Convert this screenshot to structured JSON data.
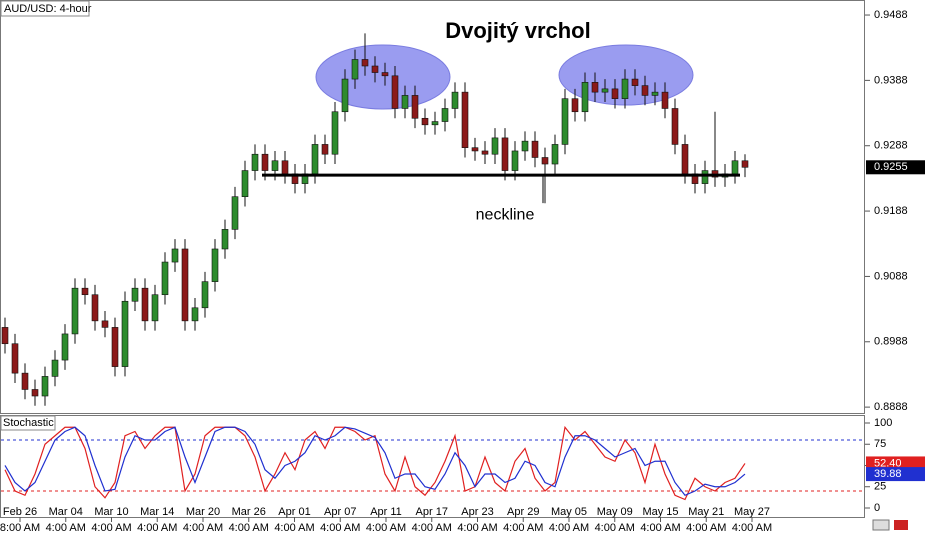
{
  "chart_data": [
    {
      "type": "candlestick",
      "title": "Dvojitý vrchol",
      "subtitle": "AUD/USD: 4-hour",
      "open": [
        0.901,
        0.8985,
        0.894,
        0.8915,
        0.8905,
        0.8935,
        0.896,
        0.9,
        0.907,
        0.906,
        0.902,
        0.901,
        0.895,
        0.905,
        0.907,
        0.902,
        0.906,
        0.911,
        0.913,
        0.902,
        0.904,
        0.908,
        0.913,
        0.916,
        0.921,
        0.925,
        0.9275,
        0.925,
        0.9265,
        0.9245,
        0.923,
        0.9245,
        0.929,
        0.9275,
        0.934,
        0.939,
        0.942,
        0.941,
        0.94,
        0.9395,
        0.9345,
        0.9365,
        0.933,
        0.932,
        0.9325,
        0.9345,
        0.937,
        0.9285,
        0.928,
        0.9275,
        0.93,
        0.925,
        0.928,
        0.9295,
        0.927,
        0.926,
        0.929,
        0.936,
        0.934,
        0.9385,
        0.937,
        0.9375,
        0.936,
        0.939,
        0.938,
        0.9365,
        0.937,
        0.9345,
        0.929,
        0.9245,
        0.923,
        0.925,
        0.924,
        0.9245,
        0.9265
      ],
      "high": [
        0.9025,
        0.9,
        0.8955,
        0.893,
        0.895,
        0.8975,
        0.9015,
        0.9085,
        0.9085,
        0.9075,
        0.9035,
        0.9025,
        0.9065,
        0.9085,
        0.9085,
        0.9075,
        0.9125,
        0.9145,
        0.9145,
        0.9055,
        0.9095,
        0.9145,
        0.9175,
        0.9225,
        0.9265,
        0.929,
        0.929,
        0.928,
        0.928,
        0.926,
        0.926,
        0.9305,
        0.9305,
        0.9355,
        0.9405,
        0.9435,
        0.946,
        0.9425,
        0.9415,
        0.941,
        0.938,
        0.938,
        0.9345,
        0.934,
        0.936,
        0.9385,
        0.9385,
        0.93,
        0.9295,
        0.9315,
        0.9315,
        0.9295,
        0.931,
        0.931,
        0.9285,
        0.9305,
        0.9375,
        0.9375,
        0.94,
        0.94,
        0.939,
        0.939,
        0.9405,
        0.9405,
        0.9395,
        0.9385,
        0.9385,
        0.936,
        0.9305,
        0.926,
        0.9265,
        0.934,
        0.926,
        0.928,
        0.9275
      ],
      "low": [
        0.897,
        0.8925,
        0.89,
        0.889,
        0.889,
        0.892,
        0.8945,
        0.8985,
        0.9045,
        0.9005,
        0.8995,
        0.8935,
        0.8935,
        0.9035,
        0.9005,
        0.9005,
        0.9045,
        0.9095,
        0.9005,
        0.9005,
        0.9025,
        0.9065,
        0.9115,
        0.9145,
        0.9195,
        0.9235,
        0.9235,
        0.9235,
        0.923,
        0.9215,
        0.9215,
        0.923,
        0.926,
        0.926,
        0.9325,
        0.9375,
        0.9395,
        0.9385,
        0.938,
        0.933,
        0.933,
        0.9315,
        0.9305,
        0.9305,
        0.931,
        0.933,
        0.927,
        0.9265,
        0.926,
        0.926,
        0.9235,
        0.9235,
        0.9265,
        0.9255,
        0.92,
        0.9245,
        0.9275,
        0.9325,
        0.9325,
        0.9355,
        0.9355,
        0.9345,
        0.9345,
        0.9365,
        0.935,
        0.935,
        0.933,
        0.9275,
        0.923,
        0.9215,
        0.9215,
        0.9225,
        0.9225,
        0.923,
        0.924
      ],
      "close": [
        0.8985,
        0.894,
        0.8915,
        0.8905,
        0.8935,
        0.896,
        0.9,
        0.907,
        0.906,
        0.902,
        0.901,
        0.895,
        0.905,
        0.907,
        0.902,
        0.906,
        0.911,
        0.913,
        0.902,
        0.904,
        0.908,
        0.913,
        0.916,
        0.921,
        0.925,
        0.9275,
        0.925,
        0.9265,
        0.9245,
        0.923,
        0.9245,
        0.929,
        0.9275,
        0.934,
        0.939,
        0.942,
        0.941,
        0.94,
        0.9395,
        0.9345,
        0.9365,
        0.933,
        0.932,
        0.9325,
        0.9345,
        0.937,
        0.9285,
        0.928,
        0.9275,
        0.93,
        0.925,
        0.928,
        0.9295,
        0.927,
        0.926,
        0.929,
        0.936,
        0.934,
        0.9385,
        0.937,
        0.9375,
        0.936,
        0.939,
        0.938,
        0.9365,
        0.937,
        0.9345,
        0.929,
        0.9245,
        0.923,
        0.925,
        0.924,
        0.9245,
        0.9265,
        0.9255
      ],
      "up_color": "#2e8b2e",
      "down_color": "#8b1a1a",
      "ylim": [
        0.8879,
        0.9511
      ],
      "yticks": [
        0.8888,
        0.8988,
        0.9088,
        0.9188,
        0.9288,
        0.9388,
        0.9488
      ],
      "neckline": {
        "label": "neckline",
        "value": 0.9243
      },
      "xtick_dates": [
        "Feb 26",
        "Mar 04",
        "Mar 10",
        "Mar 14",
        "Mar 20",
        "Mar 26",
        "Apr 01",
        "Apr 07",
        "Apr 11",
        "Apr 17",
        "Apr 23",
        "Apr 29",
        "May 05",
        "May 09",
        "May 15",
        "May 21",
        "May 27"
      ],
      "xtick_times": [
        "8:00 AM",
        "4:00 AM",
        "4:00 AM",
        "4:00 AM",
        "4:00 AM",
        "4:00 AM",
        "4:00 AM",
        "4:00 AM",
        "4:00 AM",
        "4:00 AM",
        "4:00 AM",
        "4:00 AM",
        "4:00 AM",
        "4:00 AM",
        "4:00 AM",
        "4:00 AM",
        "4:00 AM"
      ],
      "grid": false
    },
    {
      "type": "line",
      "title": "Stochastic",
      "series": [
        {
          "color": "#e02020",
          "values": [
            45,
            20,
            15,
            40,
            75,
            85,
            95,
            95,
            70,
            25,
            12,
            30,
            85,
            90,
            70,
            85,
            95,
            95,
            20,
            40,
            85,
            95,
            95,
            95,
            85,
            60,
            20,
            40,
            65,
            45,
            80,
            90,
            70,
            95,
            95,
            90,
            80,
            85,
            40,
            20,
            60,
            25,
            15,
            30,
            55,
            85,
            20,
            25,
            60,
            30,
            20,
            55,
            70,
            35,
            20,
            30,
            95,
            80,
            90,
            75,
            60,
            55,
            80,
            65,
            30,
            75,
            40,
            15,
            10,
            35,
            25,
            20,
            30,
            35,
            52.4
          ],
          "value_labels": {
            "74": "52.40"
          }
        },
        {
          "color": "#2030d0",
          "values": [
            50,
            30,
            20,
            30,
            55,
            80,
            90,
            95,
            85,
            50,
            20,
            22,
            60,
            85,
            80,
            80,
            90,
            95,
            60,
            30,
            60,
            90,
            95,
            95,
            90,
            75,
            45,
            35,
            50,
            55,
            65,
            85,
            80,
            85,
            95,
            93,
            88,
            83,
            65,
            35,
            40,
            40,
            25,
            22,
            40,
            65,
            50,
            25,
            40,
            40,
            30,
            35,
            55,
            50,
            30,
            25,
            60,
            85,
            85,
            80,
            70,
            60,
            65,
            70,
            50,
            55,
            55,
            30,
            15,
            20,
            28,
            25,
            25,
            30,
            39.88
          ],
          "value_labels": {
            "74": "39.88"
          }
        }
      ],
      "levels": [
        {
          "value": 80,
          "color": "#2030d0"
        },
        {
          "value": 20,
          "color": "#e02020"
        }
      ],
      "ylim": [
        -10.6,
        109.4
      ],
      "yticks": [
        0,
        25,
        50,
        75,
        100
      ],
      "grid": false
    }
  ]
}
